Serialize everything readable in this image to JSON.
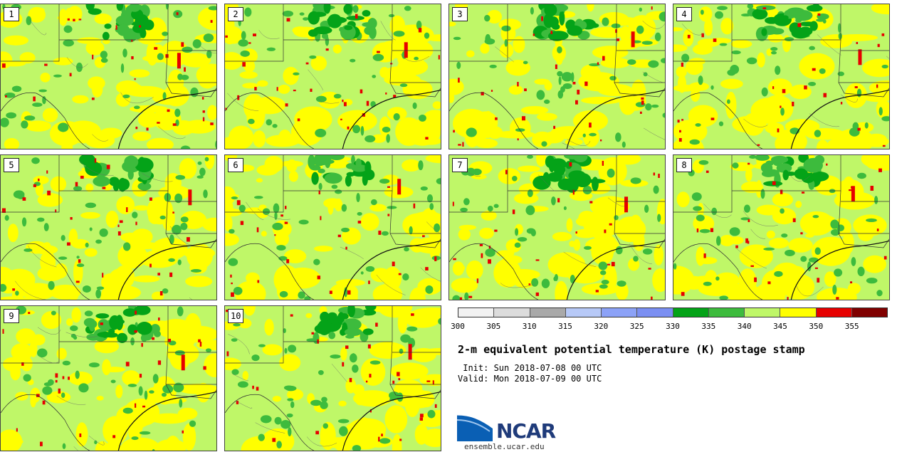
{
  "panels": [
    {
      "label": "1"
    },
    {
      "label": "2"
    },
    {
      "label": "3"
    },
    {
      "label": "4"
    },
    {
      "label": "5"
    },
    {
      "label": "6"
    },
    {
      "label": "7"
    },
    {
      "label": "8"
    },
    {
      "label": "9"
    },
    {
      "label": "10"
    }
  ],
  "colorbar": {
    "colors": [
      "#f2f2f2",
      "#dcdcdc",
      "#a9a9a9",
      "#b7c9f7",
      "#8ca2f7",
      "#7b8ff2",
      "#04a318",
      "#3dbb3d",
      "#bff768",
      "#ffff00",
      "#e60000",
      "#800000"
    ],
    "ticks": [
      "300",
      "305",
      "310",
      "315",
      "320",
      "325",
      "330",
      "335",
      "340",
      "345",
      "350",
      "355"
    ]
  },
  "map_colors": {
    "base": "#bff768",
    "yellow": "#ffff00",
    "green": "#3dbb3d",
    "darkgreen": "#04a318",
    "red": "#e60000",
    "border": "#333333",
    "water": "#4a70e8"
  },
  "title": "2-m equivalent potential temperature (K) postage stamp",
  "init": " Init: Sun 2018-07-08 00 UTC",
  "valid": "Valid: Mon 2018-07-09 00 UTC",
  "logo": {
    "text": "NCAR",
    "url": "ensemble.ucar.edu"
  }
}
